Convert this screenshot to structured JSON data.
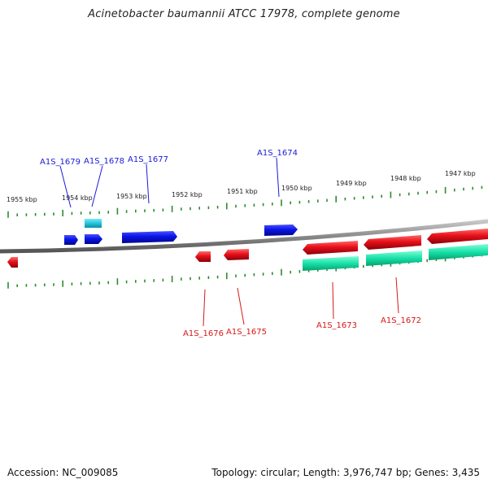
{
  "title": "Acinetobacter baumannii ATCC 17978, complete genome",
  "footer": {
    "accession": "Accession: NC_009085",
    "summary": "Topology: circular; Length: 3,976,747 bp; Genes: 3,435"
  },
  "colors": {
    "forward_gene": "#0a14e6",
    "reverse_gene": "#e8101a",
    "rna_feature": "#18e0a8",
    "cyan_feature": "#22c6dc",
    "backbone": "#8a8a8a",
    "tick": "#2e8b2e",
    "forward_label": "#1a1adc",
    "reverse_label": "#d81818"
  },
  "scale": {
    "labels": [
      "1955 kbp",
      "1954 kbp",
      "1953 kbp",
      "1952 kbp",
      "1951 kbp",
      "1950 kbp",
      "1949 kbp",
      "1948 kbp",
      "1947 kbp"
    ]
  },
  "genes_forward": [
    {
      "name": "A1S_1679"
    },
    {
      "name": "A1S_1678"
    },
    {
      "name": "A1S_1677"
    },
    {
      "name": "A1S_1674"
    }
  ],
  "genes_reverse": [
    {
      "name": "A1S_1676"
    },
    {
      "name": "A1S_1675"
    },
    {
      "name": "A1S_1673"
    },
    {
      "name": "A1S_1672"
    }
  ]
}
